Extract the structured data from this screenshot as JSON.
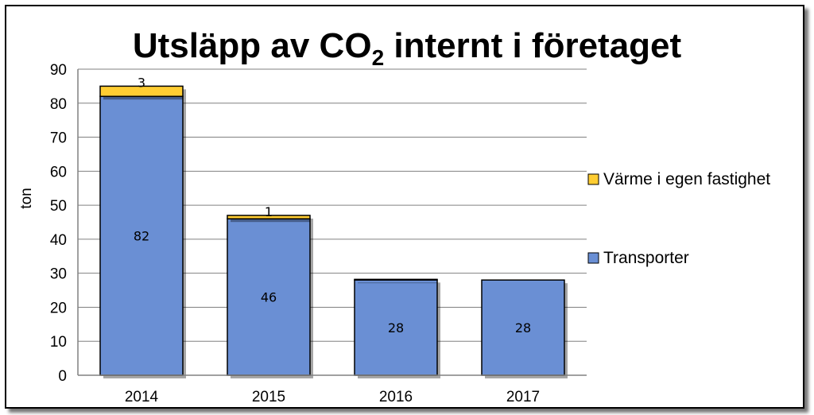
{
  "chart_data": {
    "type": "bar",
    "stacked": true,
    "title": {
      "prefix": "Utsläpp av CO",
      "subscript": "2",
      "suffix": " internt i företaget"
    },
    "ylabel": "ton",
    "xlabel": "",
    "ylim": [
      0,
      90
    ],
    "yticks": [
      0,
      10,
      20,
      30,
      40,
      50,
      60,
      70,
      80,
      90
    ],
    "grid": true,
    "legend_position": "right",
    "categories": [
      "2014",
      "2015",
      "2016",
      "2017"
    ],
    "series": [
      {
        "name": "Transporter",
        "values": [
          82,
          46,
          28,
          28
        ],
        "color": "#6A8FD4",
        "labels": [
          "82",
          "46",
          "28",
          "28"
        ]
      },
      {
        "name": "Värme i egen fastighet",
        "values": [
          3,
          1,
          0.2,
          0
        ],
        "color": "#FFCD32",
        "labels": [
          "3",
          "1",
          "",
          ""
        ]
      }
    ]
  }
}
